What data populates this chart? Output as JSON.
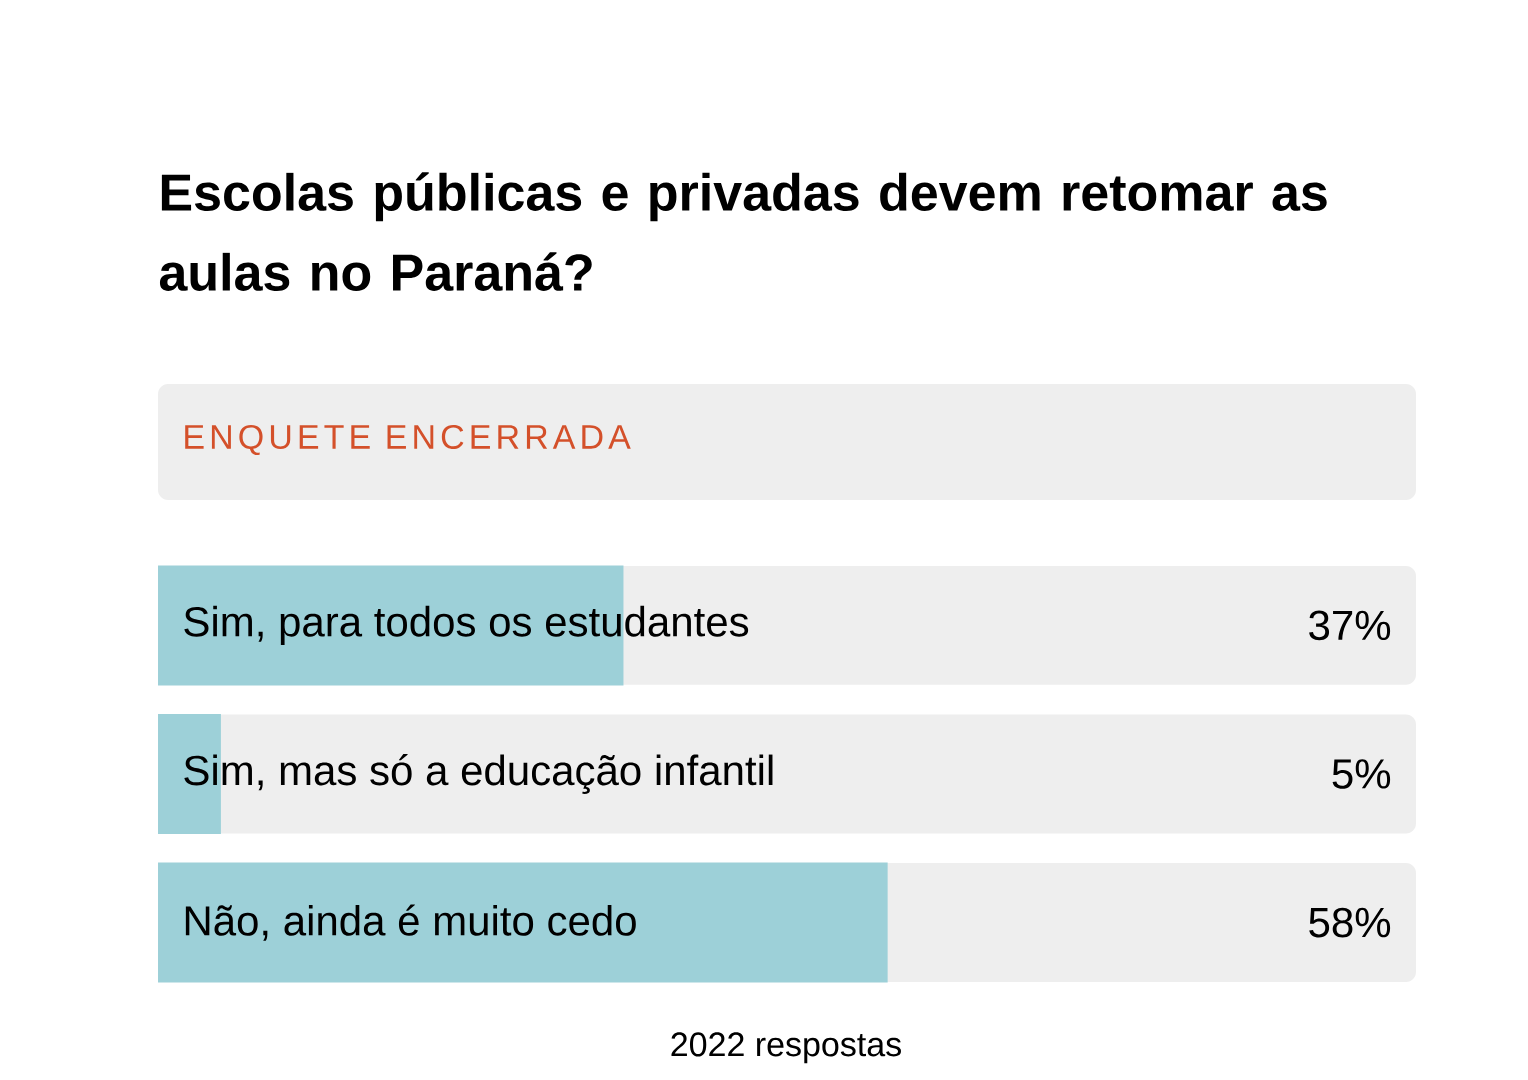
{
  "chart_data": {
    "type": "bar",
    "orientation": "horizontal",
    "title": "Escolas públicas e privadas devem retomar as aulas no Paraná?",
    "subtitle": "ENQUETE ENCERRADA",
    "categories": [
      "Sim, para todos os estudantes",
      "Sim, mas só a educação infantil",
      "Não, ainda é muito cedo"
    ],
    "values": [
      37,
      5,
      58
    ],
    "value_labels": [
      "37%",
      "5%",
      "58%"
    ],
    "color": "#9dd0d8",
    "xlim": [
      0,
      100
    ],
    "tick_labels": false,
    "annotations": [
      "2022 respostas"
    ]
  }
}
